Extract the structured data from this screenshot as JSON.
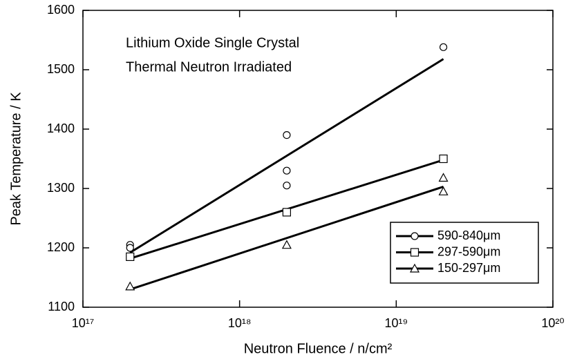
{
  "chart_data": {
    "type": "scatter",
    "annotations": [
      "Lithium Oxide Single Crystal",
      "Thermal Neutron Irradiated"
    ],
    "xlabel": "Neutron Fluence / n/cm²",
    "ylabel": "Peak Temperature / K",
    "xlog": true,
    "xlim": [
      1e+17,
      1e+20
    ],
    "xticks": [
      {
        "value": 1e+17,
        "label": "10¹⁷"
      },
      {
        "value": 1e+18,
        "label": "10¹⁸"
      },
      {
        "value": 1e+19,
        "label": "10¹⁹"
      },
      {
        "value": 1e+20,
        "label": "10²⁰"
      }
    ],
    "ylim": [
      1100,
      1600
    ],
    "yticks": [
      1100,
      1200,
      1300,
      1400,
      1500,
      1600
    ],
    "legend": "lower right",
    "series": [
      {
        "name": "590-840μm",
        "color": "#000000",
        "marker": "circle",
        "x": [
          2e+17,
          2e+17,
          2e+18,
          2e+18,
          2e+18,
          2e+19
        ],
        "values": [
          1205,
          1200,
          1390,
          1330,
          1305,
          1538
        ],
        "fit_x": [
          2e+17,
          2e+19
        ],
        "fit_values": [
          1192,
          1518
        ]
      },
      {
        "name": "297-590μm",
        "color": "#000000",
        "marker": "square",
        "x": [
          2e+17,
          2e+18,
          2e+19
        ],
        "values": [
          1185,
          1260,
          1350
        ],
        "fit_x": [
          2e+17,
          2e+19
        ],
        "fit_values": [
          1182,
          1348
        ]
      },
      {
        "name": "150-297μm",
        "color": "#000000",
        "marker": "triangle",
        "x": [
          2e+17,
          2e+18,
          2e+19,
          2e+19
        ],
        "values": [
          1135,
          1205,
          1318,
          1295
        ],
        "fit_x": [
          2e+17,
          2e+19
        ],
        "fit_values": [
          1130,
          1303
        ]
      }
    ]
  }
}
